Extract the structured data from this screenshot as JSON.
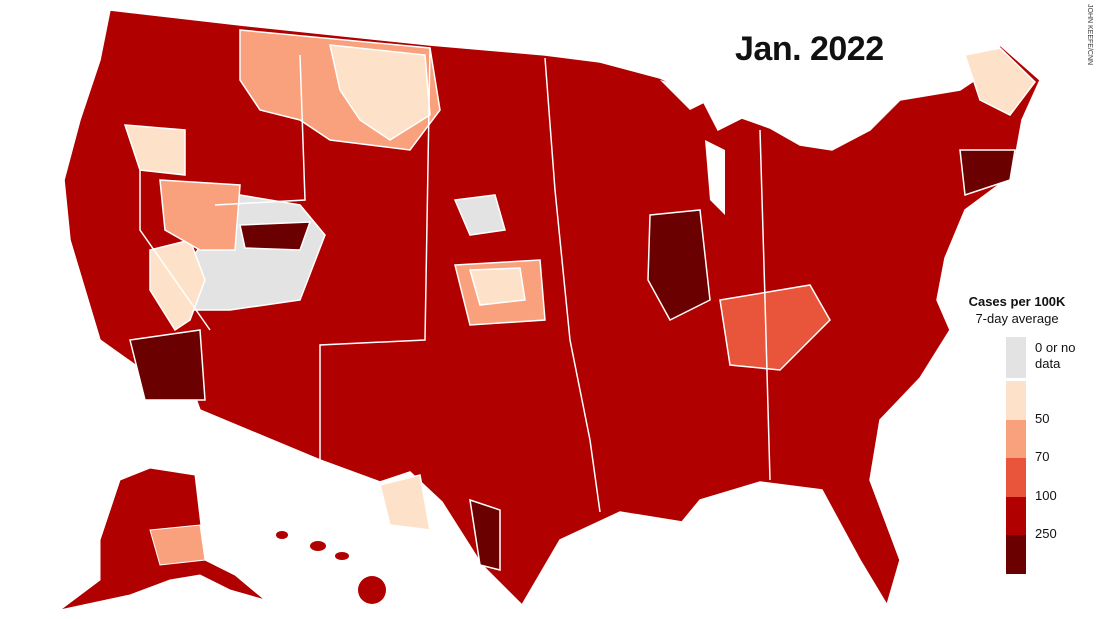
{
  "title": "Jan. 2022",
  "credit": "JOHN KEEFE/CNN",
  "legend": {
    "title": "Cases per 100K",
    "subtitle": "7-day average",
    "no_data_label": "0 or no data",
    "no_data_color": "#e3e3e3",
    "thresholds": [
      50,
      70,
      100,
      250
    ],
    "colors": [
      "#fde2c9",
      "#f9a07c",
      "#e8553a",
      "#b00000",
      "#6b0000"
    ]
  }
}
